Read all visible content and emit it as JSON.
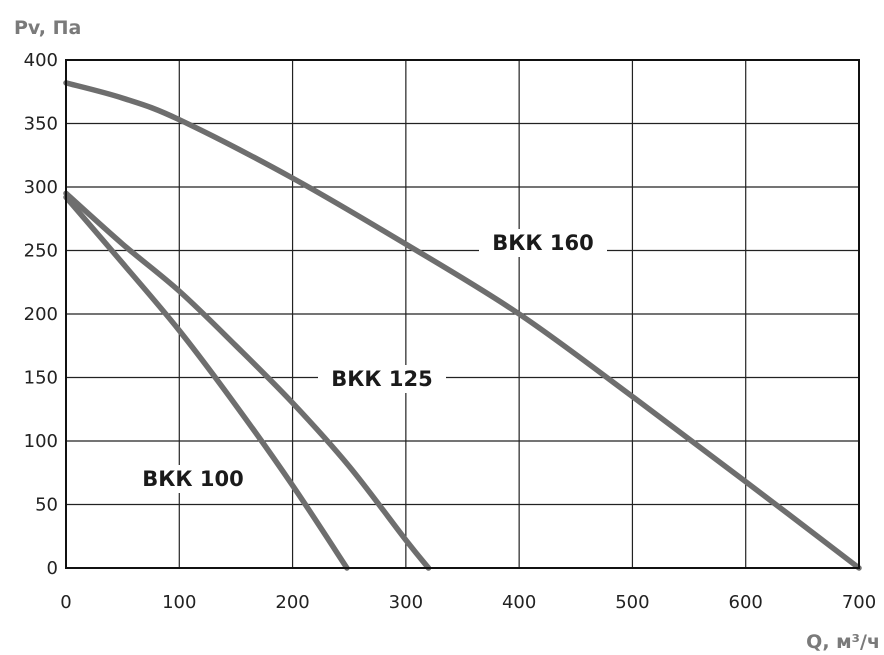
{
  "chart_data": {
    "type": "line",
    "title": "",
    "ylabel": "Pv, Па",
    "xlabel": "Q, м³/ч",
    "xlim": [
      0,
      700
    ],
    "ylim": [
      0,
      400
    ],
    "x_ticks": [
      0,
      100,
      200,
      300,
      400,
      500,
      600,
      700
    ],
    "y_ticks": [
      0,
      50,
      100,
      150,
      200,
      250,
      300,
      350,
      400
    ],
    "x_tick_labels": [
      "0",
      "100",
      "200",
      "300",
      "400",
      "500",
      "600",
      "700"
    ],
    "y_tick_labels": [
      "0",
      "50",
      "100",
      "150",
      "200",
      "250",
      "300",
      "350",
      "400"
    ],
    "grid": true,
    "line_color": "#6e6e6e",
    "series": [
      {
        "name": "ВКК 100",
        "x": [
          0,
          50,
          100,
          150,
          200,
          248
        ],
        "y": [
          292,
          240,
          187,
          128,
          65,
          0
        ]
      },
      {
        "name": "ВКК 125",
        "x": [
          0,
          50,
          100,
          150,
          200,
          250,
          300,
          320
        ],
        "y": [
          295,
          255,
          218,
          175,
          130,
          80,
          22,
          0
        ]
      },
      {
        "name": "ВКК 160",
        "x": [
          0,
          50,
          100,
          200,
          300,
          400,
          500,
          600,
          700
        ],
        "y": [
          382,
          370,
          353,
          307,
          255,
          200,
          135,
          68,
          0
        ]
      }
    ]
  }
}
